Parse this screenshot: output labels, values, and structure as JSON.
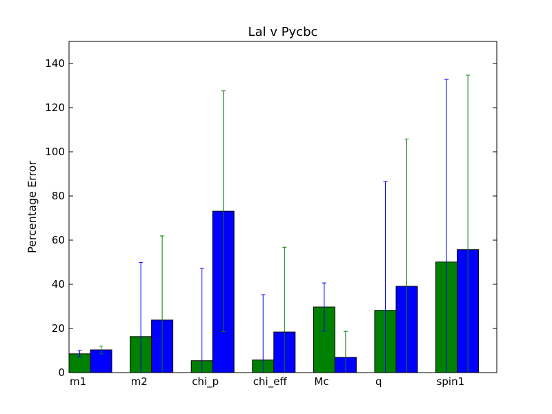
{
  "chart_data": {
    "type": "bar",
    "title": "Lal v Pycbc",
    "xlabel": "",
    "ylabel": "Percentage Error",
    "ylim": [
      0,
      150
    ],
    "yticks": [
      0,
      20,
      40,
      60,
      80,
      100,
      120,
      140
    ],
    "grid": false,
    "categories": [
      "m1",
      "m2",
      "chi_p",
      "chi_eff",
      "Mc",
      "q",
      "spin1"
    ],
    "series": [
      {
        "color": "#008000",
        "values": [
          8.5,
          16.3,
          5.4,
          5.7,
          29.7,
          28.2,
          50.1
        ],
        "error_color": "#0000ff",
        "error_low": [
          7.2,
          0,
          0,
          0,
          18.8,
          0,
          0
        ],
        "error_high": [
          10.0,
          49.9,
          47.2,
          35.3,
          40.6,
          86.5,
          132.8
        ]
      },
      {
        "color": "#0000ff",
        "values": [
          10.3,
          23.8,
          73.1,
          18.4,
          6.9,
          39.1,
          55.7
        ],
        "error_color": "#008000",
        "error_low": [
          8.5,
          0,
          18.6,
          0,
          0,
          0,
          0
        ],
        "error_high": [
          12.0,
          61.9,
          127.6,
          56.8,
          18.7,
          105.8,
          134.7
        ]
      }
    ]
  }
}
